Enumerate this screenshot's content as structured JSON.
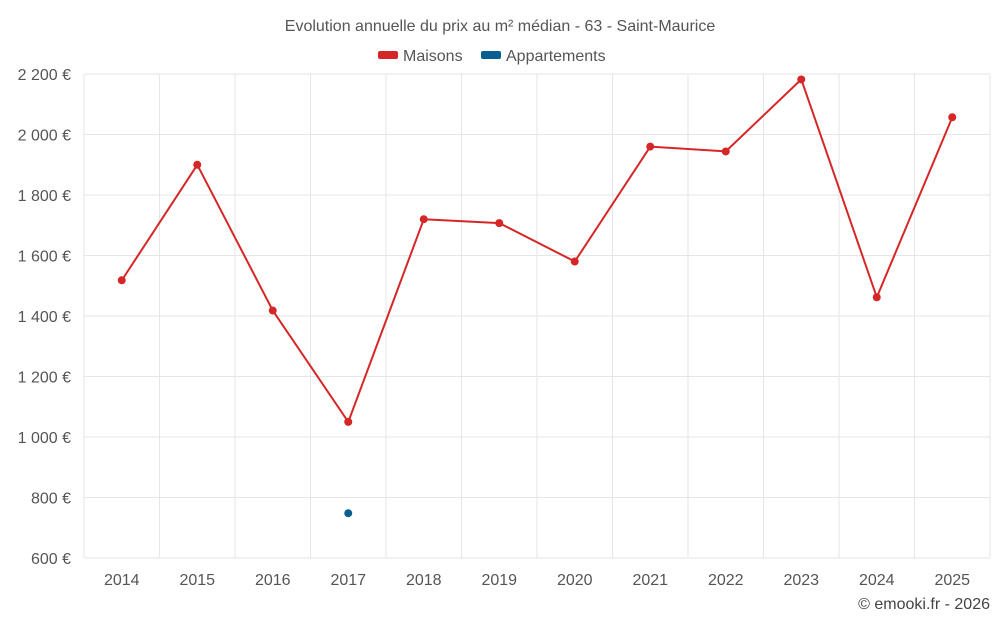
{
  "chart_data": {
    "type": "line",
    "title": "Evolution annuelle du prix au m² médian - 63 - Saint-Maurice",
    "categories": [
      "2014",
      "2015",
      "2016",
      "2017",
      "2018",
      "2019",
      "2020",
      "2021",
      "2022",
      "2023",
      "2024",
      "2025"
    ],
    "series": [
      {
        "name": "Maisons",
        "color": "#d62728",
        "values": [
          1518,
          1900,
          1418,
          1050,
          1720,
          1707,
          1580,
          1960,
          1944,
          2182,
          1462,
          2057
        ]
      },
      {
        "name": "Appartements",
        "color": "#0a5f91",
        "values": [
          null,
          null,
          null,
          748,
          null,
          null,
          null,
          null,
          null,
          null,
          null,
          null
        ]
      }
    ],
    "ylim": [
      600,
      2200
    ],
    "yticks": [
      600,
      800,
      1000,
      1200,
      1400,
      1600,
      1800,
      2000,
      2200
    ],
    "ytick_labels": [
      "600 €",
      "800 €",
      "1 000 €",
      "1 200 €",
      "1 400 €",
      "1 600 €",
      "1 800 €",
      "2 000 €",
      "2 200 €"
    ],
    "xlabel": "",
    "ylabel": "",
    "grid": true,
    "legend_position": "top-center"
  },
  "credit": "© emooki.fr - 2026"
}
